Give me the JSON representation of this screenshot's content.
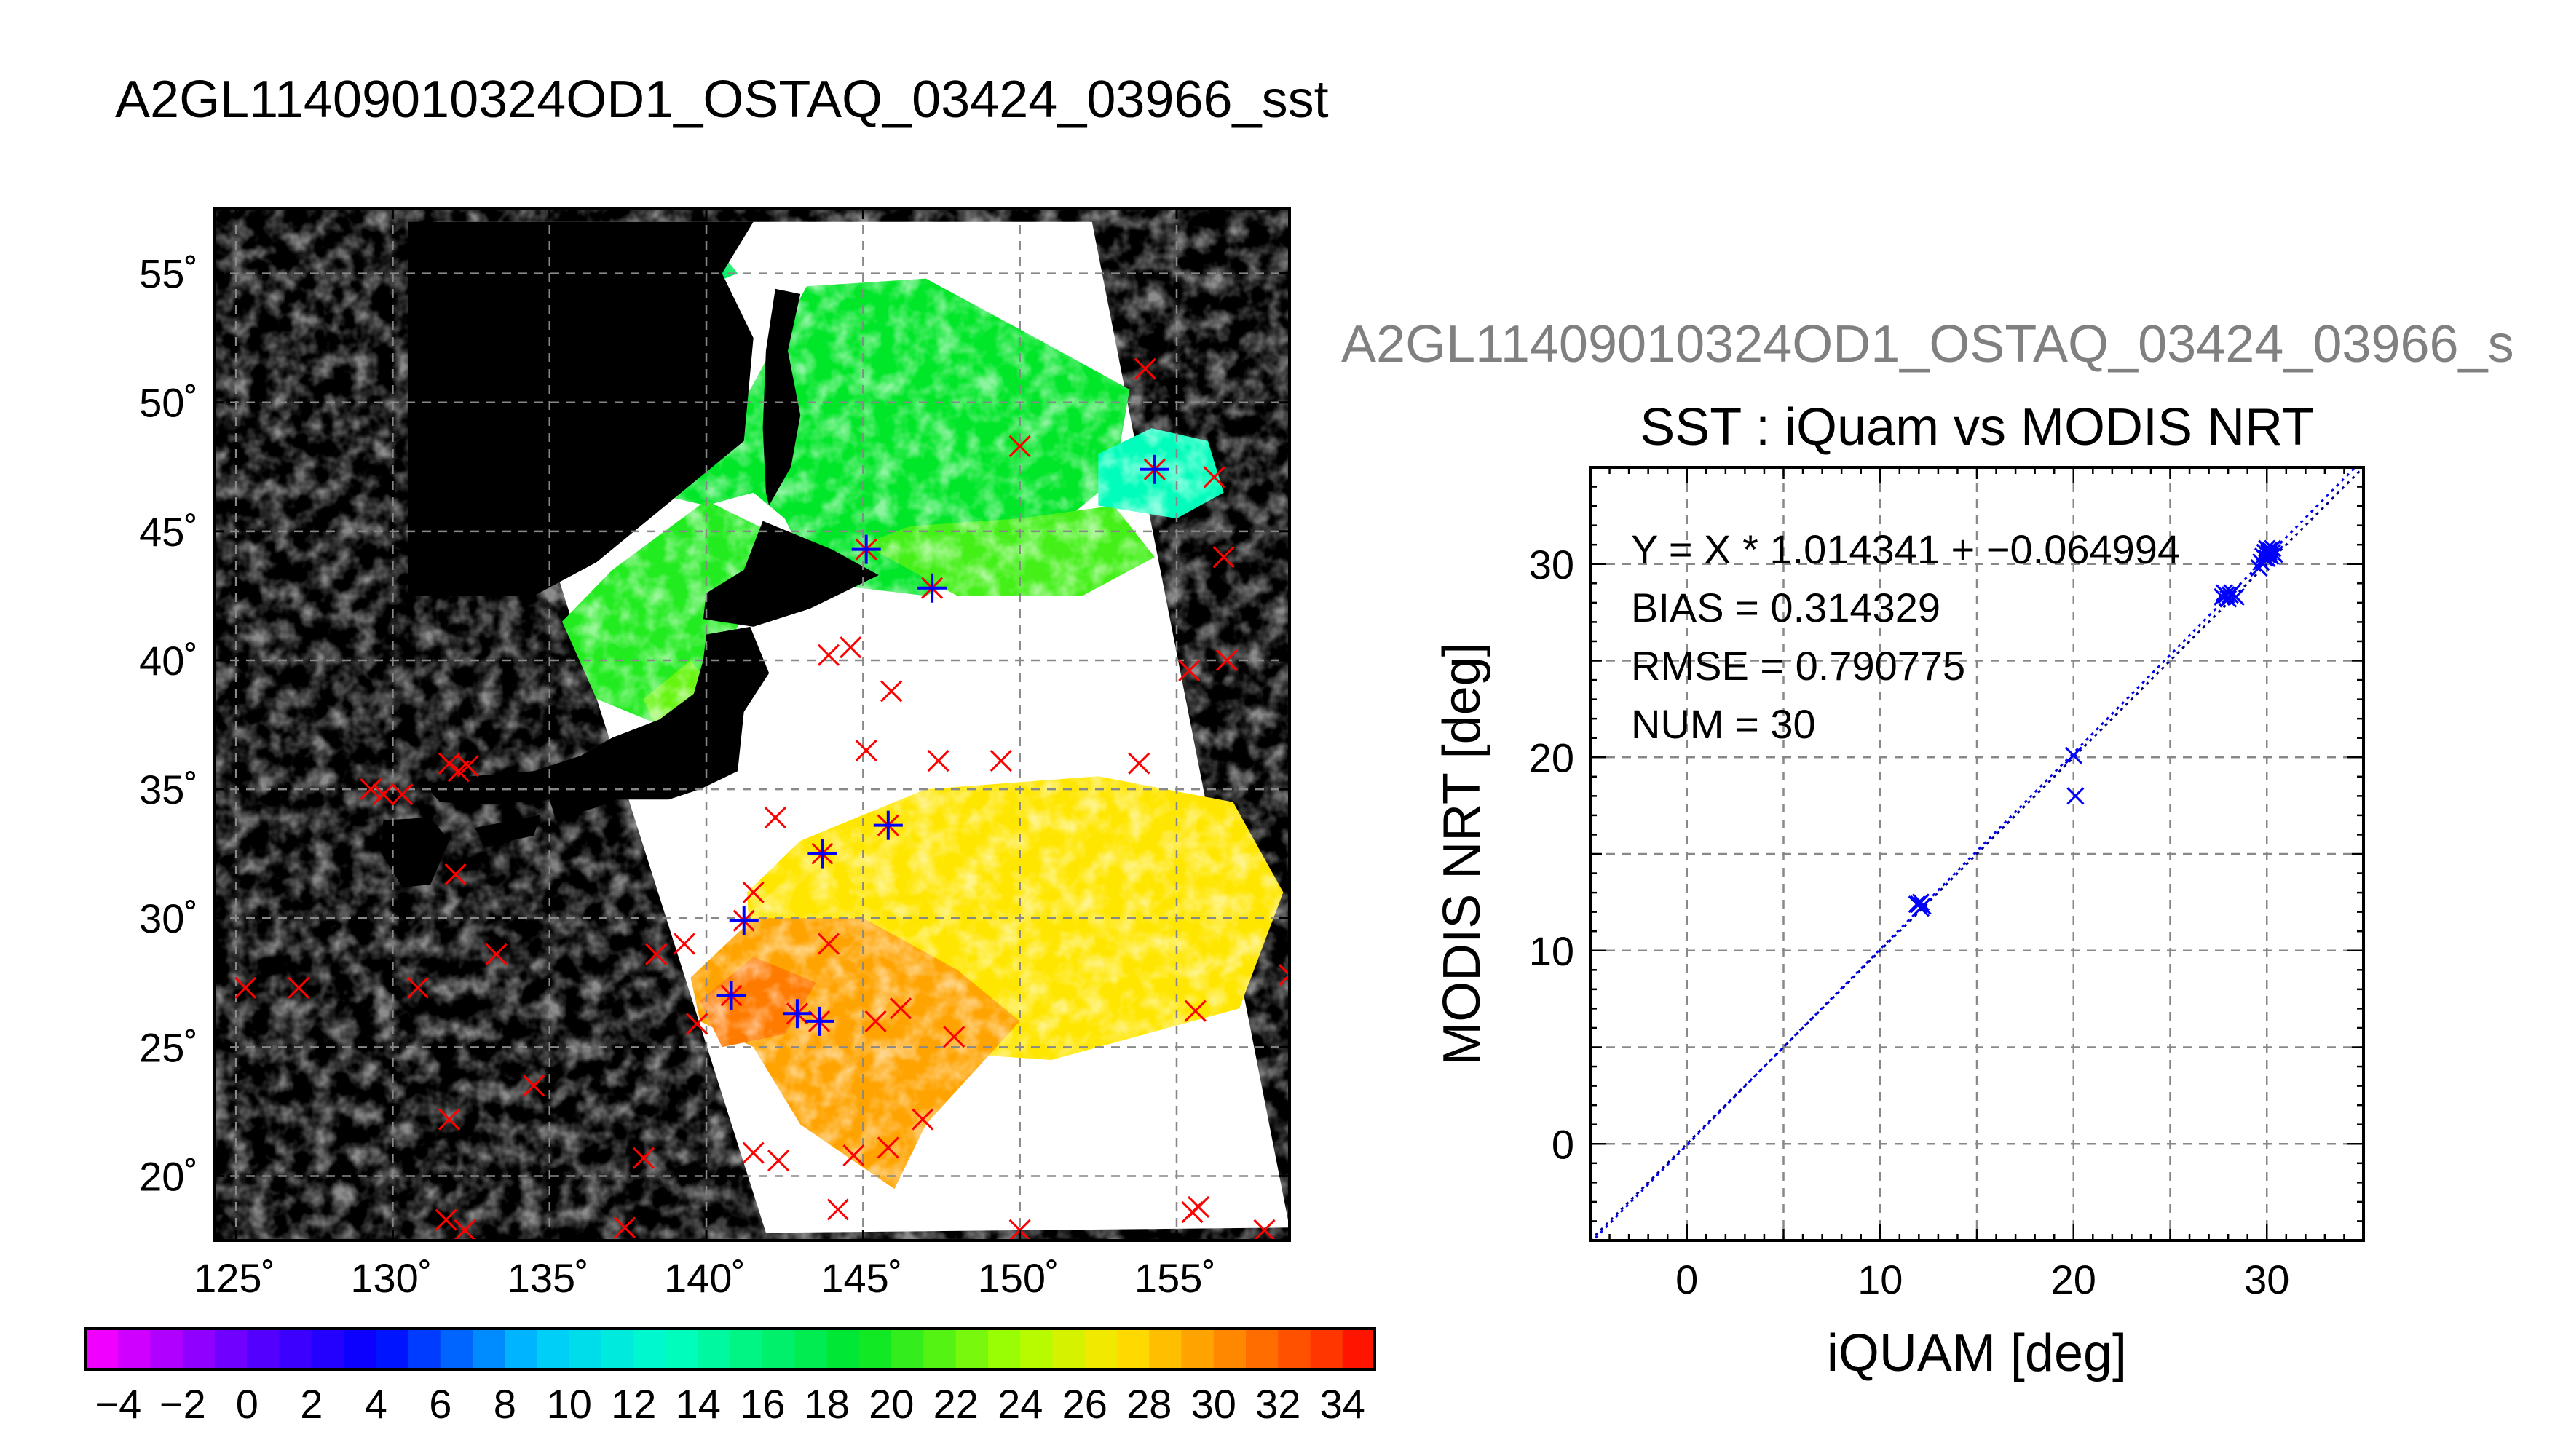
{
  "header": {
    "title": "A2GL11409010324OD1_OSTAQ_03424_03966_sst",
    "right_title": "A2GL11409010324OD1_OSTAQ_03424_03966_s"
  },
  "map": {
    "lon_range": [
      124.3,
      158.6
    ],
    "lat_range": [
      17.5,
      57.5
    ],
    "lon_ticks": [
      125,
      130,
      135,
      140,
      145,
      150,
      155
    ],
    "lat_ticks": [
      20,
      25,
      30,
      35,
      40,
      45,
      50,
      55
    ],
    "lon_tick_labels": [
      "125˚",
      "130˚",
      "135˚",
      "140˚",
      "145˚",
      "150˚",
      "155˚"
    ],
    "lat_tick_labels": [
      "20˚",
      "25˚",
      "30˚",
      "35˚",
      "40˚",
      "45˚",
      "50˚",
      "55˚"
    ],
    "swath_corners": [
      [
        131.3,
        57
      ],
      [
        152.3,
        57
      ],
      [
        158.6,
        18
      ],
      [
        141.9,
        17.8
      ],
      [
        135.2,
        43.5
      ]
    ],
    "colors": {
      "background": "#000000",
      "gridline": "#888888",
      "marker_red": "#ff0000",
      "marker_blue": "#0000ff"
    },
    "iquam_markers": [
      [
        125.3,
        27.3
      ],
      [
        127.0,
        27.3
      ],
      [
        129.3,
        35.0
      ],
      [
        129.7,
        34.8
      ],
      [
        130.3,
        34.8
      ],
      [
        130.8,
        27.3
      ],
      [
        131.8,
        36.0
      ],
      [
        132.1,
        35.7
      ],
      [
        132.4,
        35.9
      ],
      [
        132.0,
        31.7
      ],
      [
        133.3,
        28.6
      ],
      [
        134.5,
        23.5
      ],
      [
        131.8,
        22.2
      ],
      [
        131.7,
        18.3
      ],
      [
        132.3,
        17.9
      ],
      [
        137.4,
        18.0
      ],
      [
        138.0,
        20.7
      ],
      [
        138.4,
        28.6
      ],
      [
        139.3,
        29.0
      ],
      [
        139.7,
        25.9
      ],
      [
        140.8,
        27.0
      ],
      [
        141.2,
        29.9
      ],
      [
        141.5,
        31.0
      ],
      [
        142.2,
        33.9
      ],
      [
        141.5,
        20.9
      ],
      [
        142.3,
        20.6
      ],
      [
        142.9,
        26.3
      ],
      [
        143.6,
        26.0
      ],
      [
        143.7,
        32.5
      ],
      [
        143.9,
        29.0
      ],
      [
        143.9,
        40.2
      ],
      [
        144.6,
        40.5
      ],
      [
        144.7,
        20.8
      ],
      [
        144.2,
        18.7
      ],
      [
        145.1,
        36.5
      ],
      [
        145.4,
        26.0
      ],
      [
        145.8,
        33.6
      ],
      [
        145.8,
        21.1
      ],
      [
        146.2,
        26.5
      ],
      [
        145.9,
        38.8
      ],
      [
        146.9,
        22.2
      ],
      [
        147.2,
        42.8
      ],
      [
        147.4,
        36.1
      ],
      [
        147.9,
        25.4
      ],
      [
        149.4,
        36.1
      ],
      [
        150.0,
        48.3
      ],
      [
        150.0,
        17.9
      ],
      [
        153.8,
        36.0
      ],
      [
        154.0,
        51.3
      ],
      [
        154.3,
        47.4
      ],
      [
        155.4,
        39.6
      ],
      [
        155.6,
        26.4
      ],
      [
        155.5,
        18.6
      ],
      [
        155.7,
        18.8
      ],
      [
        156.2,
        47.1
      ],
      [
        156.5,
        44.0
      ],
      [
        156.6,
        40.0
      ],
      [
        157.8,
        17.9
      ],
      [
        158.6,
        27.8
      ],
      [
        145.1,
        44.3
      ]
    ],
    "matched_markers": [
      [
        140.8,
        27.0
      ],
      [
        141.2,
        29.9
      ],
      [
        142.9,
        26.3
      ],
      [
        143.6,
        26.0
      ],
      [
        143.7,
        32.5
      ],
      [
        145.8,
        33.6
      ],
      [
        147.2,
        42.8
      ],
      [
        145.1,
        44.3
      ],
      [
        154.3,
        47.4
      ]
    ]
  },
  "colorbar": {
    "min": -5,
    "max": 35,
    "tick_labels": [
      "−4",
      "−2",
      "0",
      "2",
      "4",
      "6",
      "8",
      "10",
      "12",
      "14",
      "16",
      "18",
      "20",
      "22",
      "24",
      "26",
      "28",
      "30",
      "32",
      "34"
    ]
  },
  "chart_data": {
    "type": "scatter",
    "title": "SST : iQuam vs MODIS NRT",
    "xlabel": "iQUAM [deg]",
    "ylabel": "MODIS NRT [deg]",
    "xlim": [
      -5,
      35
    ],
    "ylim": [
      -5,
      35
    ],
    "x_ticks": [
      0,
      10,
      20,
      30
    ],
    "y_ticks": [
      0,
      10,
      20,
      30
    ],
    "x_tick_labels": [
      "0",
      "10",
      "20",
      "30"
    ],
    "y_tick_labels": [
      "0",
      "10",
      "20",
      "30"
    ],
    "grid": true,
    "stats": [
      "Y = X * 1.014341 + −0.064994",
      "BIAS = 0.314329",
      "RMSE = 0.790775",
      "NUM = 30"
    ],
    "fit": {
      "slope": 1.014341,
      "intercept": -0.064994
    },
    "marker_color": "#0000ff",
    "points": [
      [
        12.0,
        12.4
      ],
      [
        12.1,
        12.5
      ],
      [
        12.2,
        12.3
      ],
      [
        11.9,
        12.4
      ],
      [
        12.1,
        12.2
      ],
      [
        20.0,
        20.1
      ],
      [
        20.1,
        18.0
      ],
      [
        27.7,
        28.3
      ],
      [
        27.9,
        28.4
      ],
      [
        28.0,
        28.2
      ],
      [
        28.2,
        28.5
      ],
      [
        28.4,
        28.3
      ],
      [
        27.8,
        28.5
      ],
      [
        28.1,
        28.4
      ],
      [
        29.6,
        29.8
      ],
      [
        29.8,
        30.4
      ],
      [
        29.9,
        30.6
      ],
      [
        30.0,
        30.5
      ],
      [
        30.1,
        30.7
      ],
      [
        30.2,
        30.4
      ],
      [
        30.3,
        30.6
      ],
      [
        30.0,
        30.8
      ],
      [
        29.9,
        30.3
      ],
      [
        30.1,
        30.5
      ],
      [
        30.2,
        30.7
      ],
      [
        30.4,
        30.5
      ],
      [
        29.7,
        30.1
      ],
      [
        30.0,
        30.3
      ],
      [
        30.3,
        30.8
      ],
      [
        30.1,
        30.6
      ]
    ]
  }
}
